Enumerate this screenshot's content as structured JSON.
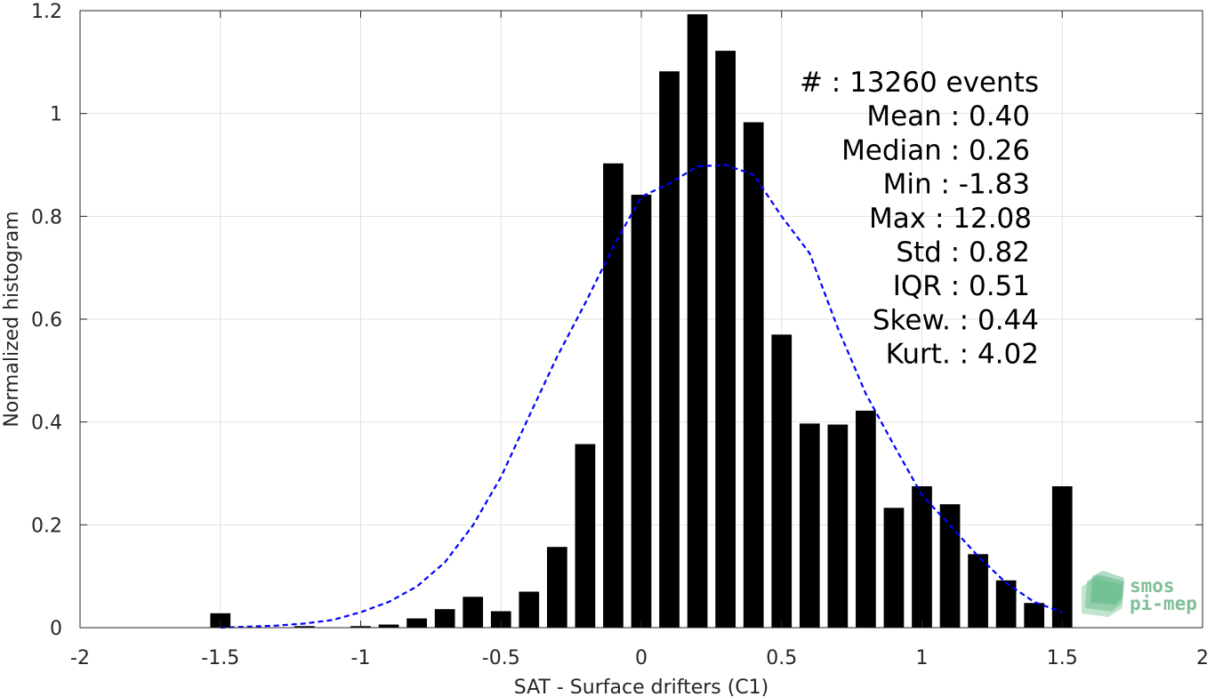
{
  "chart_data": {
    "type": "bar",
    "xlabel": "SAT - Surface drifters (C1)",
    "ylabel": "Normalized histogram",
    "xlim": [
      -2,
      2
    ],
    "ylim": [
      0,
      1.2
    ],
    "xticks": [
      -2,
      -1.5,
      -1,
      -0.5,
      0,
      0.5,
      1,
      1.5,
      2
    ],
    "xtick_labels": [
      "-2",
      "-1.5",
      "-1",
      "-0.5",
      "0",
      "0.5",
      "1",
      "1.5",
      "2"
    ],
    "yticks": [
      0,
      0.2,
      0.4,
      0.6,
      0.8,
      1,
      1.2
    ],
    "ytick_labels": [
      "0",
      "0.2",
      "0.4",
      "0.6",
      "0.8",
      "1",
      "1.2"
    ],
    "grid": true,
    "bar_color": "#000000",
    "bars": {
      "x": [
        -1.5,
        -1.4,
        -1.3,
        -1.2,
        -1.1,
        -1.0,
        -0.9,
        -0.8,
        -0.7,
        -0.6,
        -0.5,
        -0.4,
        -0.3,
        -0.2,
        -0.1,
        0.0,
        0.1,
        0.2,
        0.3,
        0.4,
        0.5,
        0.6,
        0.7,
        0.8,
        0.9,
        1.0,
        1.1,
        1.2,
        1.3,
        1.4,
        1.5
      ],
      "values": [
        0.028,
        0.0,
        0.0,
        0.003,
        0.0,
        0.003,
        0.006,
        0.018,
        0.036,
        0.06,
        0.032,
        0.07,
        0.157,
        0.357,
        0.903,
        0.842,
        1.082,
        1.193,
        1.122,
        0.983,
        0.57,
        0.397,
        0.395,
        0.422,
        0.233,
        0.275,
        0.24,
        0.143,
        0.092,
        0.048,
        0.275
      ]
    },
    "series": [
      {
        "name": "",
        "style": "dashed",
        "color": "#0000ff",
        "x": [
          -1.5,
          -1.4,
          -1.3,
          -1.2,
          -1.1,
          -1.0,
          -0.9,
          -0.8,
          -0.7,
          -0.6,
          -0.5,
          -0.4,
          -0.3,
          -0.2,
          -0.1,
          0.0,
          0.1,
          0.2,
          0.3,
          0.4,
          0.5,
          0.6,
          0.7,
          0.8,
          0.9,
          1.0,
          1.1,
          1.2,
          1.3,
          1.4,
          1.5
        ],
        "values": [
          0.0,
          0.002,
          0.004,
          0.008,
          0.015,
          0.03,
          0.05,
          0.08,
          0.127,
          0.199,
          0.293,
          0.411,
          0.527,
          0.631,
          0.741,
          0.838,
          0.864,
          0.897,
          0.9,
          0.881,
          0.8,
          0.728,
          0.583,
          0.455,
          0.355,
          0.258,
          0.199,
          0.139,
          0.087,
          0.05,
          0.03
        ]
      }
    ],
    "stats": [
      "#  : 13260 events",
      "Mean : 0.40",
      "Median : 0.26",
      "Min : -1.83",
      "Max : 12.08",
      "Std : 0.82",
      "IQR : 0.51",
      "Skew. : 0.44",
      "Kurt. : 4.02"
    ]
  },
  "logo": {
    "line1": "smos",
    "line2": "pi-mep",
    "color": "#7fbf99"
  }
}
